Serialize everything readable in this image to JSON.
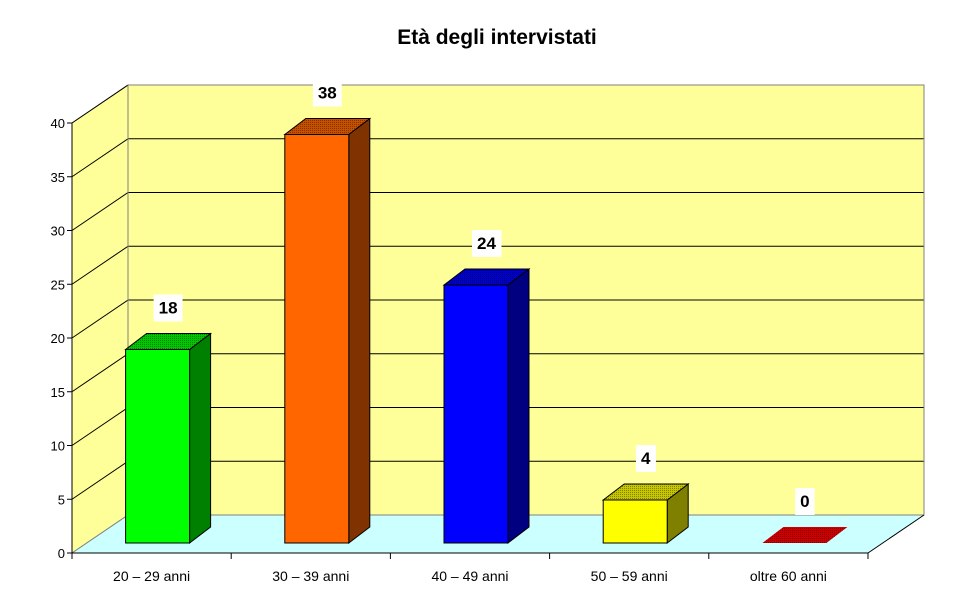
{
  "chart_data": {
    "type": "bar",
    "style": "3d-column",
    "title": "Età degli intervistati",
    "xlabel": "",
    "ylabel": "",
    "categories": [
      "20 – 29 anni",
      "30 – 39 anni",
      "40 – 49 anni",
      "50 – 59 anni",
      "oltre 60 anni"
    ],
    "values": [
      18,
      38,
      24,
      4,
      0
    ],
    "data_labels": [
      "18",
      "38",
      "24",
      "4",
      "0"
    ],
    "bar_colors": [
      "#00ff00",
      "#ff6600",
      "#0000ff",
      "#ffff00",
      "#cc0000"
    ],
    "ylim": [
      0,
      40
    ],
    "yticks": [
      0,
      5,
      10,
      15,
      20,
      25,
      30,
      35,
      40
    ],
    "grid": true,
    "legend": null,
    "wall_color": "#ffff99",
    "floor_color": "#ccffff"
  }
}
